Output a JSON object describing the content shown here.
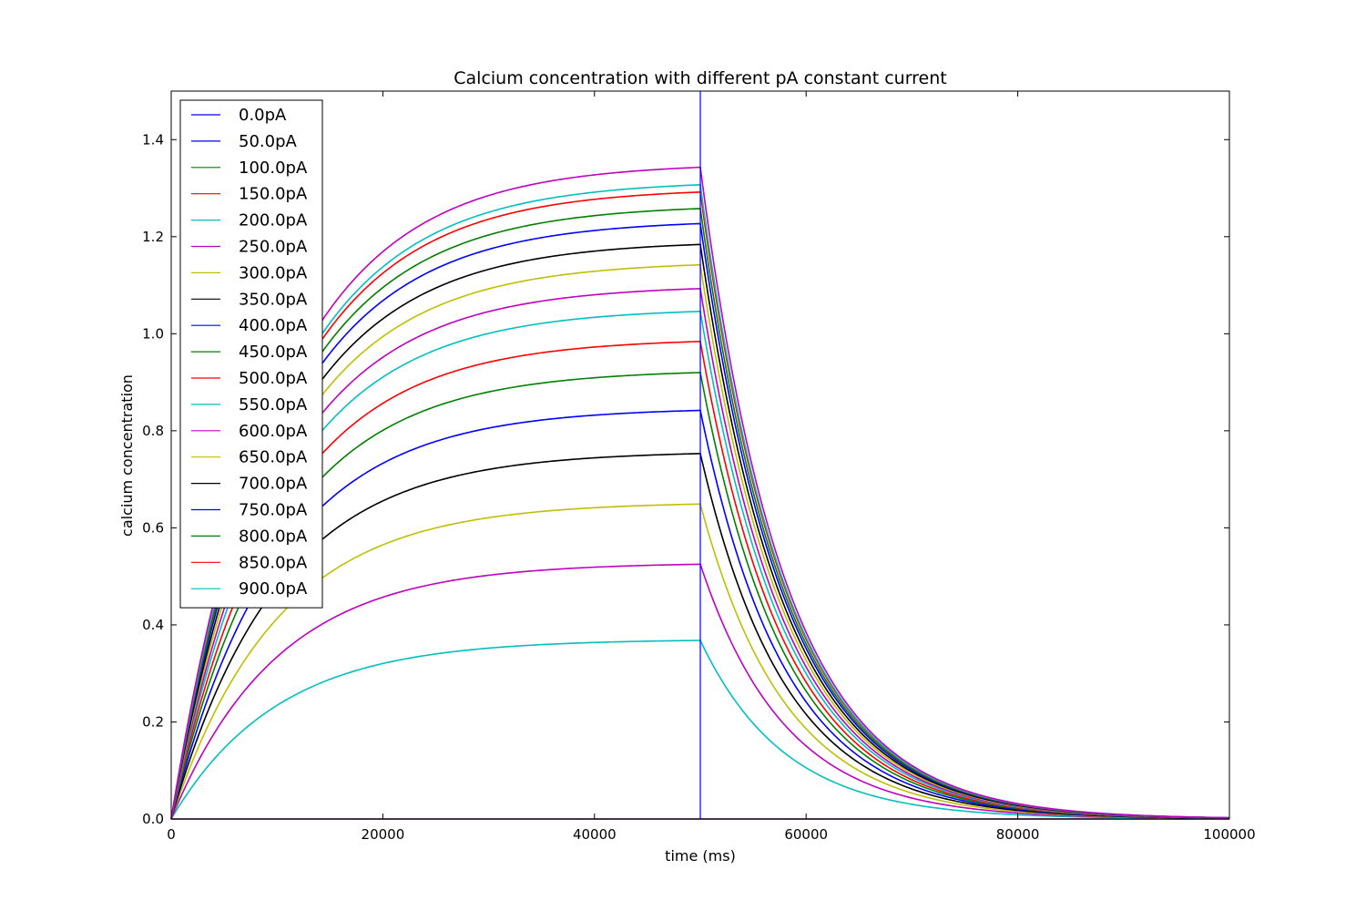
{
  "chart_data": {
    "type": "line",
    "title": "Calcium concentration with different pA constant current",
    "xlabel": "time (ms)",
    "ylabel": "calcium concentration",
    "xlim": [
      0,
      100000
    ],
    "ylim": [
      0.0,
      1.5
    ],
    "xticks": [
      0,
      20000,
      40000,
      60000,
      80000,
      100000
    ],
    "xtick_labels": [
      "0",
      "20000",
      "40000",
      "60000",
      "80000",
      "100000"
    ],
    "yticks": [
      0.0,
      0.2,
      0.4,
      0.6,
      0.8,
      1.0,
      1.2,
      1.4
    ],
    "ytick_labels": [
      "0.0",
      "0.2",
      "0.4",
      "0.6",
      "0.8",
      "1.0",
      "1.2",
      "1.4"
    ],
    "grid": false,
    "legend_position": "top-left",
    "stimulus_end_ms": 50000,
    "series": [
      {
        "name": "0.0pA",
        "color": "#0000ff",
        "plateau": 0.0
      },
      {
        "name": "50.0pA",
        "color": "#0000ff",
        "plateau": 0.0
      },
      {
        "name": "100.0pA",
        "color": "#008000",
        "plateau": 0.0
      },
      {
        "name": "150.0pA",
        "color": "#ff0000",
        "plateau": 0.0
      },
      {
        "name": "200.0pA",
        "color": "#00bfbf",
        "plateau": 0.368
      },
      {
        "name": "250.0pA",
        "color": "#bf00bf",
        "plateau": 0.525
      },
      {
        "name": "300.0pA",
        "color": "#bfbf00",
        "plateau": 0.649
      },
      {
        "name": "350.0pA",
        "color": "#000000",
        "plateau": 0.753
      },
      {
        "name": "400.0pA",
        "color": "#0000ff",
        "plateau": 0.842
      },
      {
        "name": "450.0pA",
        "color": "#008000",
        "plateau": 0.92
      },
      {
        "name": "500.0pA",
        "color": "#ff0000",
        "plateau": 0.984
      },
      {
        "name": "550.0pA",
        "color": "#00bfbf",
        "plateau": 1.046
      },
      {
        "name": "600.0pA",
        "color": "#bf00bf",
        "plateau": 1.093
      },
      {
        "name": "650.0pA",
        "color": "#bfbf00",
        "plateau": 1.142
      },
      {
        "name": "700.0pA",
        "color": "#000000",
        "plateau": 1.184
      },
      {
        "name": "750.0pA",
        "color": "#0000ff",
        "plateau": 1.227
      },
      {
        "name": "800.0pA",
        "color": "#008000",
        "plateau": 1.258
      },
      {
        "name": "850.0pA",
        "color": "#ff0000",
        "plateau": 1.292
      },
      {
        "name": "900.0pA",
        "color": "#00bfbf",
        "plateau": 1.307
      },
      {
        "plateau": 1.343,
        "color": "#bf00bf"
      }
    ],
    "rise_tau_ms": 10000,
    "decay_tau_ms": 8000
  }
}
